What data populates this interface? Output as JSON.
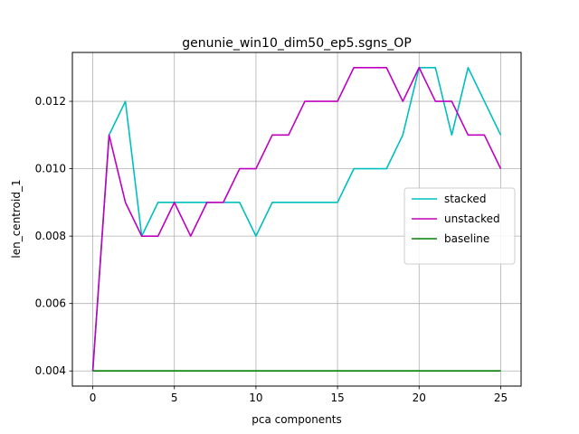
{
  "chart_data": {
    "type": "line",
    "title": "genunie_win10_dim50_ep5.sgns_OP",
    "xlabel": "pca components",
    "ylabel": "len_centroid_1",
    "xlim": [
      -1.25,
      26.25
    ],
    "ylim": [
      0.00355,
      0.01345
    ],
    "xticks": [
      0,
      5,
      10,
      15,
      20,
      25
    ],
    "xtick_labels": [
      "0",
      "5",
      "10",
      "15",
      "20",
      "25"
    ],
    "yticks": [
      0.004,
      0.006,
      0.008,
      0.01,
      0.012
    ],
    "ytick_labels": [
      "0.004",
      "0.006",
      "0.008",
      "0.010",
      "0.012"
    ],
    "grid": true,
    "legend_position": "center-right",
    "x": [
      0,
      1,
      2,
      3,
      4,
      5,
      6,
      7,
      8,
      9,
      10,
      11,
      12,
      13,
      14,
      15,
      16,
      17,
      18,
      19,
      20,
      21,
      22,
      23,
      24,
      25
    ],
    "series": [
      {
        "name": "stacked",
        "color": "#00bfbf",
        "values": [
          0.004,
          0.011,
          0.012,
          0.008,
          0.009,
          0.009,
          0.009,
          0.009,
          0.009,
          0.009,
          0.008,
          0.009,
          0.009,
          0.009,
          0.009,
          0.009,
          0.01,
          0.01,
          0.01,
          0.011,
          0.013,
          0.013,
          0.011,
          0.013,
          0.012,
          0.011
        ]
      },
      {
        "name": "unstacked",
        "color": "#bf00bf",
        "values": [
          0.004,
          0.011,
          0.009,
          0.008,
          0.008,
          0.009,
          0.008,
          0.009,
          0.009,
          0.01,
          0.01,
          0.011,
          0.011,
          0.012,
          0.012,
          0.012,
          0.013,
          0.013,
          0.013,
          0.012,
          0.013,
          0.012,
          0.012,
          0.011,
          0.011,
          0.01
        ]
      },
      {
        "name": "baseline",
        "color": "#008000",
        "values": [
          0.004,
          0.004,
          0.004,
          0.004,
          0.004,
          0.004,
          0.004,
          0.004,
          0.004,
          0.004,
          0.004,
          0.004,
          0.004,
          0.004,
          0.004,
          0.004,
          0.004,
          0.004,
          0.004,
          0.004,
          0.004,
          0.004,
          0.004,
          0.004,
          0.004,
          0.004
        ]
      }
    ]
  }
}
